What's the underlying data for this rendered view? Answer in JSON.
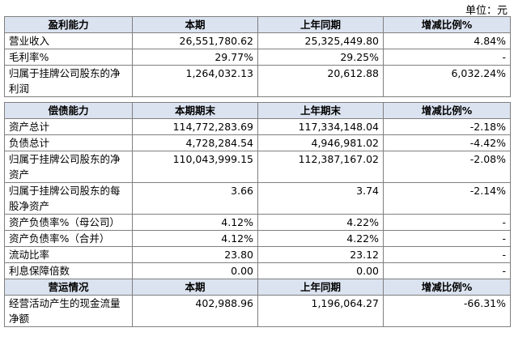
{
  "unit_label": "单位：元",
  "sections": [
    {
      "header": [
        "盈利能力",
        "本期",
        "上年同期",
        "增减比例%"
      ],
      "rows": [
        {
          "label": "营业收入",
          "cur": "26,551,780.62",
          "prev": "25,325,449.80",
          "chg": "4.84%"
        },
        {
          "label": "毛利率%",
          "cur": "29.77%",
          "prev": "29.25%",
          "chg": "-"
        },
        {
          "label": "归属于挂牌公司股东的净利润",
          "cur": "1,264,032.13",
          "prev": "20,612.88",
          "chg": "6,032.24%"
        }
      ]
    },
    {
      "header": [
        "偿债能力",
        "本期期末",
        "上年期末",
        "增减比例%"
      ],
      "rows": [
        {
          "label": "资产总计",
          "cur": "114,772,283.69",
          "prev": "117,334,148.04",
          "chg": "-2.18%"
        },
        {
          "label": "负债总计",
          "cur": "4,728,284.54",
          "prev": "4,946,981.02",
          "chg": "-4.42%"
        },
        {
          "label": "归属于挂牌公司股东的净资产",
          "cur": "110,043,999.15",
          "prev": "112,387,167.02",
          "chg": "-2.08%"
        },
        {
          "label": "归属于挂牌公司股东的每股净资产",
          "cur": "3.66",
          "prev": "3.74",
          "chg": "-2.14%"
        },
        {
          "label": "资产负债率%（母公司）",
          "cur": "4.12%",
          "prev": "4.22%",
          "chg": "-"
        },
        {
          "label": "资产负债率%（合并）",
          "cur": "4.12%",
          "prev": "4.22%",
          "chg": "-"
        },
        {
          "label": "流动比率",
          "cur": "23.80",
          "prev": "23.12",
          "chg": "-"
        },
        {
          "label": "利息保障倍数",
          "cur": "0.00",
          "prev": "0.00",
          "chg": "-"
        }
      ]
    },
    {
      "header": [
        "营运情况",
        "本期",
        "上年同期",
        "增减比例%"
      ],
      "rows": [
        {
          "label": "经营活动产生的现金流量净额",
          "cur": "402,988.96",
          "prev": "1,196,064.27",
          "chg": "-66.31%"
        }
      ]
    }
  ]
}
